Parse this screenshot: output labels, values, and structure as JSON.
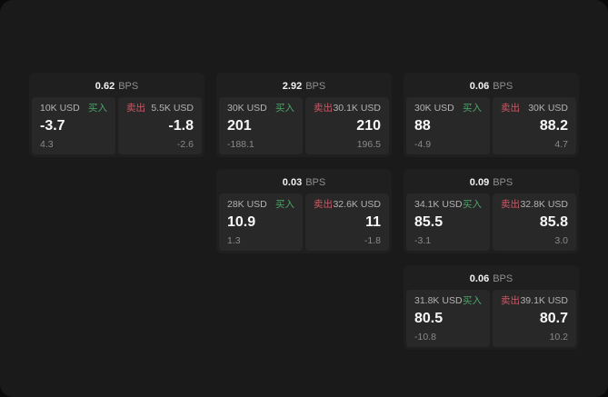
{
  "colors": {
    "screen_bg": "#0a0a0a",
    "window_bg": "#1a1a1a",
    "card_bg": "#1f1f1f",
    "panel_bg": "#282828",
    "buy_green": "#4ca568",
    "sell_red": "#cc5966"
  },
  "cards": [
    {
      "bps_value": "0.62",
      "bps_unit": "BPS",
      "buy": {
        "amount": "10K USD",
        "label": "买入",
        "value": "-3.7",
        "sub": "4.3"
      },
      "sell": {
        "label": "卖出",
        "amount": "5.5K USD",
        "value": "-1.8",
        "sub": "-2.6"
      }
    },
    {
      "bps_value": "2.92",
      "bps_unit": "BPS",
      "buy": {
        "amount": "30K USD",
        "label": "买入",
        "value": "201",
        "sub": "-188.1"
      },
      "sell": {
        "label": "卖出",
        "amount": "30.1K USD",
        "value": "210",
        "sub": "196.5"
      }
    },
    {
      "bps_value": "0.06",
      "bps_unit": "BPS",
      "buy": {
        "amount": "30K USD",
        "label": "买入",
        "value": "88",
        "sub": "-4.9"
      },
      "sell": {
        "label": "卖出",
        "amount": "30K USD",
        "value": "88.2",
        "sub": "4.7"
      }
    },
    {
      "bps_value": "0.03",
      "bps_unit": "BPS",
      "buy": {
        "amount": "28K USD",
        "label": "买入",
        "value": "10.9",
        "sub": "1.3"
      },
      "sell": {
        "label": "卖出",
        "amount": "32.6K USD",
        "value": "11",
        "sub": "-1.8"
      }
    },
    {
      "bps_value": "0.09",
      "bps_unit": "BPS",
      "buy": {
        "amount": "34.1K USD",
        "label": "买入",
        "value": "85.5",
        "sub": "-3.1"
      },
      "sell": {
        "label": "卖出",
        "amount": "32.8K USD",
        "value": "85.8",
        "sub": "3.0"
      }
    },
    {
      "bps_value": "0.06",
      "bps_unit": "BPS",
      "buy": {
        "amount": "31.8K USD",
        "label": "买入",
        "value": "80.5",
        "sub": "-10.8"
      },
      "sell": {
        "label": "卖出",
        "amount": "39.1K USD",
        "value": "80.7",
        "sub": "10.2"
      }
    }
  ]
}
